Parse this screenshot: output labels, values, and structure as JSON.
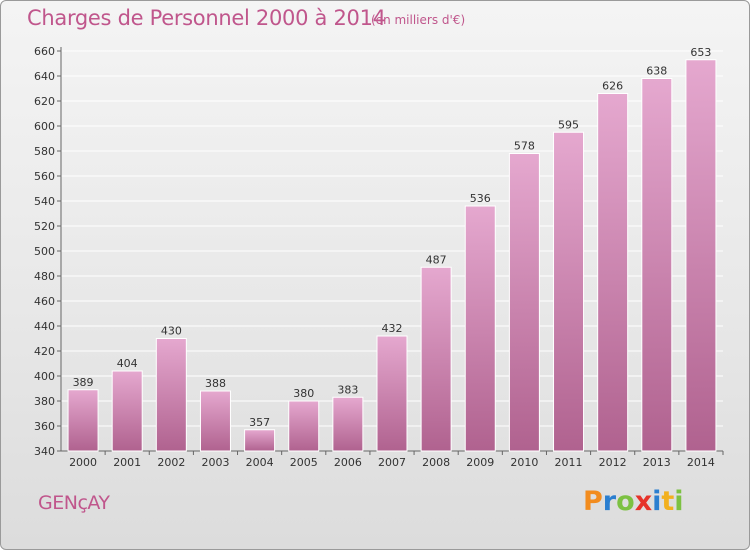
{
  "header": {
    "title": "Charges de Personnel 2000 à 2014",
    "subtitle": "(en milliers d'€)"
  },
  "footer": {
    "commune": "GENçAY",
    "logo_letters": [
      "P",
      "r",
      "o",
      "x",
      "i",
      "t",
      "i"
    ],
    "logo_colors": [
      "#f28c1e",
      "#2b7fd0",
      "#7cc142",
      "#e6332a",
      "#2b7fd0",
      "#f2b01e",
      "#7cc142"
    ]
  },
  "colors": {
    "bar_top": "#e5a8cf",
    "bar_bottom": "#b0628f",
    "bar_border": "#ffffff",
    "text_accent": "#c0568c",
    "grid": "#ffffff"
  },
  "chart_data": {
    "type": "bar",
    "categories": [
      "2000",
      "2001",
      "2002",
      "2003",
      "2004",
      "2005",
      "2006",
      "2007",
      "2008",
      "2009",
      "2010",
      "2011",
      "2012",
      "2013",
      "2014"
    ],
    "values": [
      389,
      404,
      430,
      388,
      357,
      380,
      383,
      432,
      487,
      536,
      578,
      595,
      626,
      638,
      653
    ],
    "title": "Charges de Personnel 2000 à 2014",
    "subtitle": "(en milliers d'€)",
    "xlabel": "",
    "ylabel": "",
    "ylim": [
      340,
      660
    ],
    "yticks": [
      340,
      360,
      380,
      400,
      420,
      440,
      460,
      480,
      500,
      520,
      540,
      560,
      580,
      600,
      620,
      640,
      660
    ],
    "grid": true,
    "data_labels": true
  }
}
